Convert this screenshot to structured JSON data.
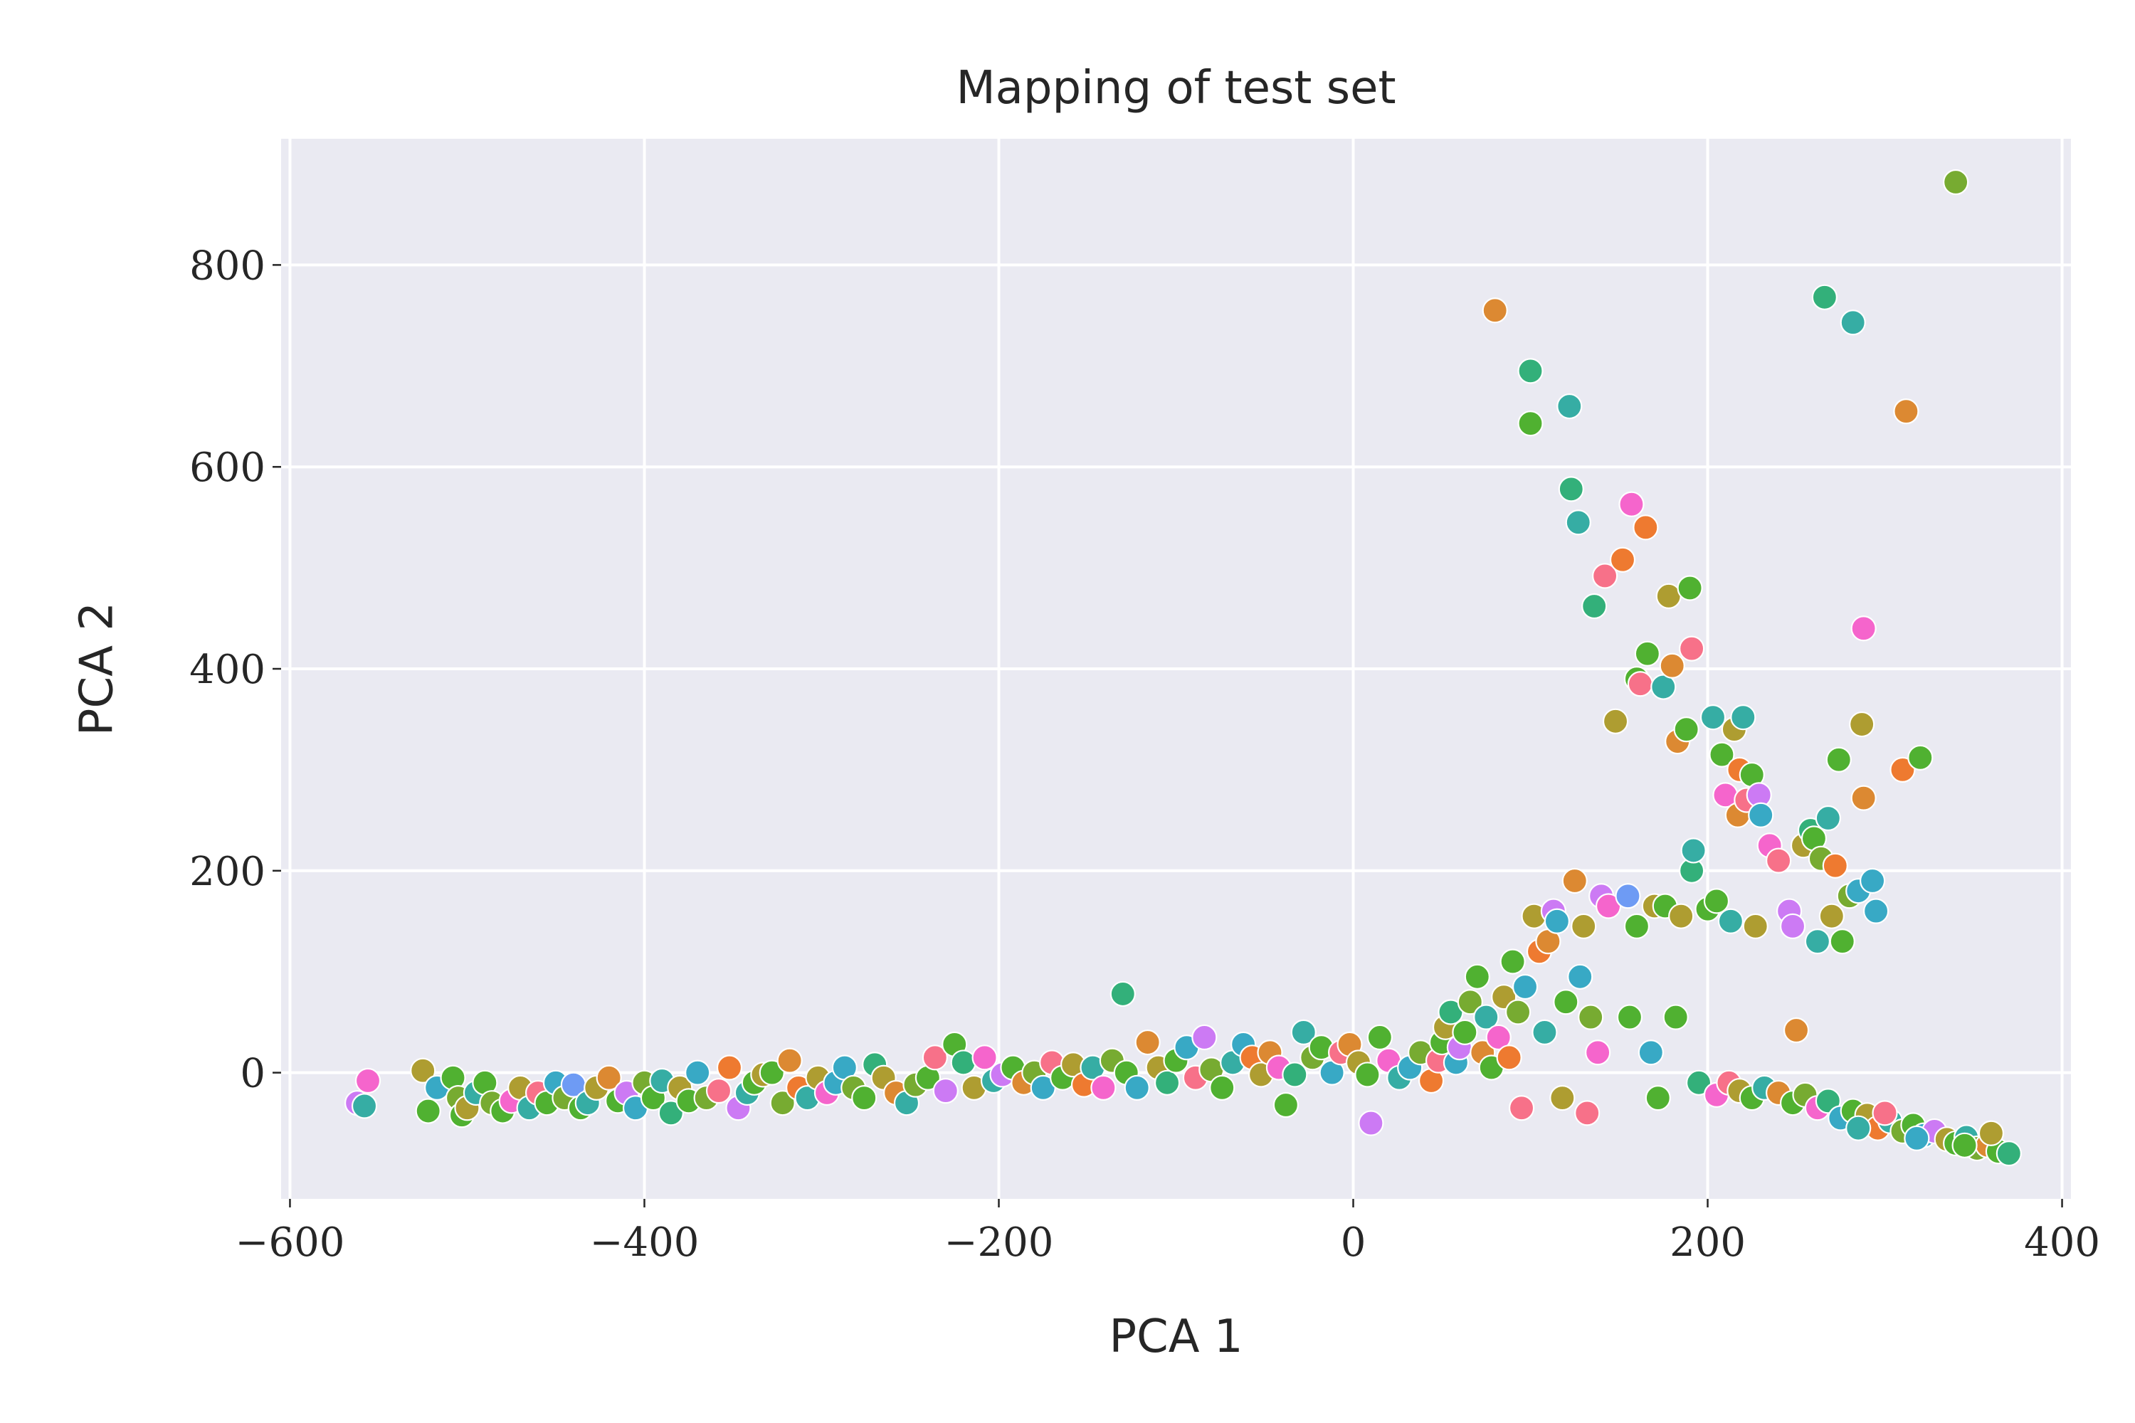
{
  "chart_data": {
    "type": "scatter",
    "title": "Mapping of test set",
    "xlabel": "PCA 1",
    "ylabel": "PCA 2",
    "xlim": [
      -605,
      405
    ],
    "ylim": [
      -125,
      925
    ],
    "xticks": [
      -600,
      -400,
      -200,
      0,
      200,
      400
    ],
    "yticks": [
      0,
      200,
      400,
      600,
      800
    ],
    "xtick_labels": [
      "−600",
      "−400",
      "−200",
      "0",
      "200",
      "400"
    ],
    "ytick_labels": [
      "0",
      "200",
      "400",
      "600",
      "800"
    ],
    "grid": true,
    "legend": "none",
    "background_color": "#eaeaf2",
    "palette": [
      "#f77189",
      "#dc8932",
      "#ae9d31",
      "#77ab31",
      "#33b07a",
      "#36ada4",
      "#38a9c5",
      "#6e9bf4",
      "#cc7af4",
      "#f565cc",
      "#ee7a30",
      "#50b131"
    ],
    "points": [
      {
        "x": -562,
        "y": -30,
        "c": 8
      },
      {
        "x": -556,
        "y": -8,
        "c": 9
      },
      {
        "x": -558,
        "y": -33,
        "c": 5
      },
      {
        "x": -525,
        "y": 2,
        "c": 2
      },
      {
        "x": -522,
        "y": -38,
        "c": 11
      },
      {
        "x": -517,
        "y": -15,
        "c": 6
      },
      {
        "x": -508,
        "y": -5,
        "c": 11
      },
      {
        "x": -505,
        "y": -25,
        "c": 3
      },
      {
        "x": -503,
        "y": -42,
        "c": 11
      },
      {
        "x": -500,
        "y": -35,
        "c": 2
      },
      {
        "x": -495,
        "y": -20,
        "c": 5
      },
      {
        "x": -490,
        "y": -10,
        "c": 11
      },
      {
        "x": -486,
        "y": -30,
        "c": 3
      },
      {
        "x": -480,
        "y": -38,
        "c": 11
      },
      {
        "x": -475,
        "y": -28,
        "c": 9
      },
      {
        "x": -470,
        "y": -15,
        "c": 2
      },
      {
        "x": -465,
        "y": -35,
        "c": 5
      },
      {
        "x": -460,
        "y": -20,
        "c": 0
      },
      {
        "x": -455,
        "y": -30,
        "c": 11
      },
      {
        "x": -450,
        "y": -10,
        "c": 6
      },
      {
        "x": -445,
        "y": -25,
        "c": 3
      },
      {
        "x": -440,
        "y": -12,
        "c": 7
      },
      {
        "x": -436,
        "y": -35,
        "c": 11
      },
      {
        "x": -432,
        "y": -30,
        "c": 5
      },
      {
        "x": -427,
        "y": -15,
        "c": 2
      },
      {
        "x": -420,
        "y": -5,
        "c": 1
      },
      {
        "x": -415,
        "y": -28,
        "c": 11
      },
      {
        "x": -410,
        "y": -20,
        "c": 8
      },
      {
        "x": -405,
        "y": -35,
        "c": 6
      },
      {
        "x": -400,
        "y": -10,
        "c": 3
      },
      {
        "x": -395,
        "y": -25,
        "c": 11
      },
      {
        "x": -390,
        "y": -8,
        "c": 5
      },
      {
        "x": -385,
        "y": -40,
        "c": 4
      },
      {
        "x": -380,
        "y": -15,
        "c": 2
      },
      {
        "x": -375,
        "y": -28,
        "c": 11
      },
      {
        "x": -370,
        "y": 0,
        "c": 6
      },
      {
        "x": -365,
        "y": -25,
        "c": 3
      },
      {
        "x": -358,
        "y": -18,
        "c": 0
      },
      {
        "x": -352,
        "y": 5,
        "c": 10
      },
      {
        "x": -347,
        "y": -35,
        "c": 8
      },
      {
        "x": -342,
        "y": -20,
        "c": 5
      },
      {
        "x": -338,
        "y": -10,
        "c": 11
      },
      {
        "x": -333,
        "y": -2,
        "c": 2
      },
      {
        "x": -328,
        "y": 0,
        "c": 11
      },
      {
        "x": -322,
        "y": -30,
        "c": 3
      },
      {
        "x": -318,
        "y": 12,
        "c": 1
      },
      {
        "x": -313,
        "y": -15,
        "c": 10
      },
      {
        "x": -308,
        "y": -25,
        "c": 5
      },
      {
        "x": -302,
        "y": -5,
        "c": 2
      },
      {
        "x": -297,
        "y": -20,
        "c": 9
      },
      {
        "x": -292,
        "y": -10,
        "c": 6
      },
      {
        "x": -287,
        "y": 5,
        "c": 6
      },
      {
        "x": -282,
        "y": -15,
        "c": 3
      },
      {
        "x": -276,
        "y": -25,
        "c": 11
      },
      {
        "x": -270,
        "y": 8,
        "c": 4
      },
      {
        "x": -265,
        "y": -5,
        "c": 2
      },
      {
        "x": -258,
        "y": -20,
        "c": 1
      },
      {
        "x": -252,
        "y": -30,
        "c": 5
      },
      {
        "x": -247,
        "y": -12,
        "c": 3
      },
      {
        "x": -240,
        "y": -5,
        "c": 11
      },
      {
        "x": -236,
        "y": 15,
        "c": 0
      },
      {
        "x": -230,
        "y": -18,
        "c": 8
      },
      {
        "x": -225,
        "y": 28,
        "c": 11
      },
      {
        "x": -220,
        "y": 10,
        "c": 4
      },
      {
        "x": -214,
        "y": -15,
        "c": 2
      },
      {
        "x": -208,
        "y": 15,
        "c": 9
      },
      {
        "x": -203,
        "y": -8,
        "c": 5
      },
      {
        "x": -198,
        "y": -2,
        "c": 8
      },
      {
        "x": -192,
        "y": 5,
        "c": 11
      },
      {
        "x": -186,
        "y": -10,
        "c": 1
      },
      {
        "x": -180,
        "y": 0,
        "c": 3
      },
      {
        "x": -175,
        "y": -15,
        "c": 6
      },
      {
        "x": -170,
        "y": 10,
        "c": 0
      },
      {
        "x": -164,
        "y": -5,
        "c": 11
      },
      {
        "x": -158,
        "y": 8,
        "c": 2
      },
      {
        "x": -152,
        "y": -12,
        "c": 10
      },
      {
        "x": -147,
        "y": 5,
        "c": 5
      },
      {
        "x": -141,
        "y": -15,
        "c": 9
      },
      {
        "x": -136,
        "y": 12,
        "c": 3
      },
      {
        "x": -130,
        "y": 78,
        "c": 4
      },
      {
        "x": -128,
        "y": 0,
        "c": 11
      },
      {
        "x": -122,
        "y": -15,
        "c": 6
      },
      {
        "x": -116,
        "y": 30,
        "c": 1
      },
      {
        "x": -110,
        "y": 5,
        "c": 2
      },
      {
        "x": -105,
        "y": -10,
        "c": 4
      },
      {
        "x": -100,
        "y": 12,
        "c": 11
      },
      {
        "x": -94,
        "y": 25,
        "c": 6
      },
      {
        "x": -89,
        "y": -5,
        "c": 0
      },
      {
        "x": -84,
        "y": 35,
        "c": 8
      },
      {
        "x": -80,
        "y": 3,
        "c": 3
      },
      {
        "x": -74,
        "y": -15,
        "c": 11
      },
      {
        "x": -68,
        "y": 10,
        "c": 5
      },
      {
        "x": -62,
        "y": 28,
        "c": 6
      },
      {
        "x": -57,
        "y": 15,
        "c": 10
      },
      {
        "x": -52,
        "y": -2,
        "c": 2
      },
      {
        "x": -47,
        "y": 20,
        "c": 1
      },
      {
        "x": -42,
        "y": 5,
        "c": 9
      },
      {
        "x": -38,
        "y": -32,
        "c": 11
      },
      {
        "x": -33,
        "y": -2,
        "c": 4
      },
      {
        "x": -28,
        "y": 40,
        "c": 5
      },
      {
        "x": -23,
        "y": 15,
        "c": 3
      },
      {
        "x": -18,
        "y": 25,
        "c": 11
      },
      {
        "x": -12,
        "y": 0,
        "c": 6
      },
      {
        "x": -7,
        "y": 20,
        "c": 0
      },
      {
        "x": -2,
        "y": 28,
        "c": 1
      },
      {
        "x": 3,
        "y": 10,
        "c": 2
      },
      {
        "x": 8,
        "y": -2,
        "c": 11
      },
      {
        "x": 10,
        "y": -50,
        "c": 8
      },
      {
        "x": 15,
        "y": 35,
        "c": 11
      },
      {
        "x": 20,
        "y": 12,
        "c": 9
      },
      {
        "x": 26,
        "y": -5,
        "c": 5
      },
      {
        "x": 32,
        "y": 5,
        "c": 6
      },
      {
        "x": 38,
        "y": 20,
        "c": 3
      },
      {
        "x": 44,
        "y": -8,
        "c": 10
      },
      {
        "x": 48,
        "y": 12,
        "c": 0
      },
      {
        "x": 50,
        "y": 30,
        "c": 11
      },
      {
        "x": 52,
        "y": 45,
        "c": 2
      },
      {
        "x": 55,
        "y": 60,
        "c": 4
      },
      {
        "x": 58,
        "y": 10,
        "c": 6
      },
      {
        "x": 60,
        "y": 25,
        "c": 8
      },
      {
        "x": 63,
        "y": 40,
        "c": 11
      },
      {
        "x": 66,
        "y": 70,
        "c": 3
      },
      {
        "x": 70,
        "y": 95,
        "c": 11
      },
      {
        "x": 73,
        "y": 20,
        "c": 1
      },
      {
        "x": 75,
        "y": 55,
        "c": 5
      },
      {
        "x": 78,
        "y": 5,
        "c": 11
      },
      {
        "x": 80,
        "y": 755,
        "c": 1
      },
      {
        "x": 82,
        "y": 35,
        "c": 9
      },
      {
        "x": 85,
        "y": 75,
        "c": 2
      },
      {
        "x": 88,
        "y": 15,
        "c": 10
      },
      {
        "x": 90,
        "y": 110,
        "c": 11
      },
      {
        "x": 93,
        "y": 60,
        "c": 3
      },
      {
        "x": 95,
        "y": -35,
        "c": 0
      },
      {
        "x": 97,
        "y": 85,
        "c": 6
      },
      {
        "x": 100,
        "y": 695,
        "c": 4
      },
      {
        "x": 100,
        "y": 643,
        "c": 11
      },
      {
        "x": 102,
        "y": 155,
        "c": 2
      },
      {
        "x": 105,
        "y": 120,
        "c": 10
      },
      {
        "x": 108,
        "y": 40,
        "c": 5
      },
      {
        "x": 110,
        "y": 130,
        "c": 1
      },
      {
        "x": 113,
        "y": 160,
        "c": 8
      },
      {
        "x": 115,
        "y": 150,
        "c": 6
      },
      {
        "x": 118,
        "y": -25,
        "c": 2
      },
      {
        "x": 120,
        "y": 70,
        "c": 11
      },
      {
        "x": 122,
        "y": 660,
        "c": 5
      },
      {
        "x": 123,
        "y": 578,
        "c": 4
      },
      {
        "x": 125,
        "y": 190,
        "c": 1
      },
      {
        "x": 127,
        "y": 545,
        "c": 5
      },
      {
        "x": 128,
        "y": 95,
        "c": 6
      },
      {
        "x": 130,
        "y": 145,
        "c": 2
      },
      {
        "x": 132,
        "y": -40,
        "c": 0
      },
      {
        "x": 134,
        "y": 55,
        "c": 3
      },
      {
        "x": 136,
        "y": 462,
        "c": 4
      },
      {
        "x": 138,
        "y": 20,
        "c": 9
      },
      {
        "x": 140,
        "y": 175,
        "c": 8
      },
      {
        "x": 142,
        "y": 492,
        "c": 0
      },
      {
        "x": 144,
        "y": 165,
        "c": 9
      },
      {
        "x": 148,
        "y": 348,
        "c": 2
      },
      {
        "x": 152,
        "y": 508,
        "c": 10
      },
      {
        "x": 155,
        "y": 175,
        "c": 7
      },
      {
        "x": 156,
        "y": 55,
        "c": 11
      },
      {
        "x": 157,
        "y": 563,
        "c": 9
      },
      {
        "x": 160,
        "y": 390,
        "c": 11
      },
      {
        "x": 160,
        "y": 145,
        "c": 11
      },
      {
        "x": 162,
        "y": 385,
        "c": 0
      },
      {
        "x": 165,
        "y": 540,
        "c": 10
      },
      {
        "x": 166,
        "y": 415,
        "c": 11
      },
      {
        "x": 168,
        "y": 20,
        "c": 6
      },
      {
        "x": 170,
        "y": 165,
        "c": 2
      },
      {
        "x": 172,
        "y": -25,
        "c": 11
      },
      {
        "x": 175,
        "y": 382,
        "c": 5
      },
      {
        "x": 176,
        "y": 165,
        "c": 11
      },
      {
        "x": 178,
        "y": 472,
        "c": 2
      },
      {
        "x": 180,
        "y": 403,
        "c": 1
      },
      {
        "x": 182,
        "y": 55,
        "c": 11
      },
      {
        "x": 183,
        "y": 328,
        "c": 1
      },
      {
        "x": 185,
        "y": 155,
        "c": 2
      },
      {
        "x": 188,
        "y": 340,
        "c": 11
      },
      {
        "x": 190,
        "y": 480,
        "c": 11
      },
      {
        "x": 191,
        "y": 420,
        "c": 0
      },
      {
        "x": 191,
        "y": 200,
        "c": 4
      },
      {
        "x": 192,
        "y": 220,
        "c": 5
      },
      {
        "x": 195,
        "y": -10,
        "c": 4
      },
      {
        "x": 200,
        "y": 162,
        "c": 11
      },
      {
        "x": 203,
        "y": 352,
        "c": 5
      },
      {
        "x": 205,
        "y": -22,
        "c": 9
      },
      {
        "x": 205,
        "y": 170,
        "c": 11
      },
      {
        "x": 208,
        "y": 315,
        "c": 11
      },
      {
        "x": 210,
        "y": 275,
        "c": 9
      },
      {
        "x": 213,
        "y": 150,
        "c": 5
      },
      {
        "x": 215,
        "y": 340,
        "c": 2
      },
      {
        "x": 217,
        "y": 255,
        "c": 1
      },
      {
        "x": 218,
        "y": 300,
        "c": 10
      },
      {
        "x": 220,
        "y": 352,
        "c": 5
      },
      {
        "x": 222,
        "y": 270,
        "c": 0
      },
      {
        "x": 225,
        "y": 295,
        "c": 11
      },
      {
        "x": 227,
        "y": 145,
        "c": 2
      },
      {
        "x": 229,
        "y": 275,
        "c": 8
      },
      {
        "x": 230,
        "y": 255,
        "c": 6
      },
      {
        "x": 235,
        "y": 225,
        "c": 9
      },
      {
        "x": 240,
        "y": 210,
        "c": 0
      },
      {
        "x": 246,
        "y": 160,
        "c": 8
      },
      {
        "x": 248,
        "y": 145,
        "c": 8
      },
      {
        "x": 250,
        "y": 42,
        "c": 1
      },
      {
        "x": 254,
        "y": 225,
        "c": 2
      },
      {
        "x": 258,
        "y": 240,
        "c": 4
      },
      {
        "x": 260,
        "y": 232,
        "c": 11
      },
      {
        "x": 262,
        "y": 130,
        "c": 5
      },
      {
        "x": 264,
        "y": 212,
        "c": 3
      },
      {
        "x": 266,
        "y": 768,
        "c": 4
      },
      {
        "x": 268,
        "y": 252,
        "c": 5
      },
      {
        "x": 270,
        "y": 155,
        "c": 2
      },
      {
        "x": 272,
        "y": 205,
        "c": 10
      },
      {
        "x": 274,
        "y": 310,
        "c": 11
      },
      {
        "x": 276,
        "y": 130,
        "c": 11
      },
      {
        "x": 280,
        "y": 175,
        "c": 3
      },
      {
        "x": 282,
        "y": 743,
        "c": 5
      },
      {
        "x": 285,
        "y": 180,
        "c": 6
      },
      {
        "x": 287,
        "y": 345,
        "c": 2
      },
      {
        "x": 288,
        "y": 272,
        "c": 1
      },
      {
        "x": 288,
        "y": 440,
        "c": 9
      },
      {
        "x": 293,
        "y": 190,
        "c": 6
      },
      {
        "x": 295,
        "y": 160,
        "c": 6
      },
      {
        "x": 310,
        "y": 300,
        "c": 10
      },
      {
        "x": 312,
        "y": 655,
        "c": 1
      },
      {
        "x": 320,
        "y": 312,
        "c": 11
      },
      {
        "x": 340,
        "y": 882,
        "c": 3
      },
      {
        "x": 212,
        "y": -10,
        "c": 0
      },
      {
        "x": 218,
        "y": -18,
        "c": 2
      },
      {
        "x": 225,
        "y": -25,
        "c": 11
      },
      {
        "x": 232,
        "y": -15,
        "c": 5
      },
      {
        "x": 240,
        "y": -20,
        "c": 1
      },
      {
        "x": 248,
        "y": -30,
        "c": 11
      },
      {
        "x": 255,
        "y": -22,
        "c": 3
      },
      {
        "x": 262,
        "y": -35,
        "c": 9
      },
      {
        "x": 268,
        "y": -28,
        "c": 4
      },
      {
        "x": 275,
        "y": -45,
        "c": 6
      },
      {
        "x": 282,
        "y": -38,
        "c": 11
      },
      {
        "x": 290,
        "y": -42,
        "c": 2
      },
      {
        "x": 296,
        "y": -55,
        "c": 10
      },
      {
        "x": 303,
        "y": -48,
        "c": 5
      },
      {
        "x": 310,
        "y": -58,
        "c": 3
      },
      {
        "x": 316,
        "y": -52,
        "c": 11
      },
      {
        "x": 322,
        "y": -62,
        "c": 6
      },
      {
        "x": 328,
        "y": -58,
        "c": 8
      },
      {
        "x": 335,
        "y": -66,
        "c": 2
      },
      {
        "x": 340,
        "y": -70,
        "c": 11
      },
      {
        "x": 346,
        "y": -64,
        "c": 5
      },
      {
        "x": 352,
        "y": -75,
        "c": 3
      },
      {
        "x": 358,
        "y": -72,
        "c": 1
      },
      {
        "x": 364,
        "y": -78,
        "c": 11
      },
      {
        "x": 370,
        "y": -80,
        "c": 4
      },
      {
        "x": 300,
        "y": -40,
        "c": 0
      },
      {
        "x": 318,
        "y": -65,
        "c": 6
      },
      {
        "x": 345,
        "y": -72,
        "c": 11
      },
      {
        "x": 360,
        "y": -60,
        "c": 2
      },
      {
        "x": 285,
        "y": -55,
        "c": 5
      }
    ]
  }
}
